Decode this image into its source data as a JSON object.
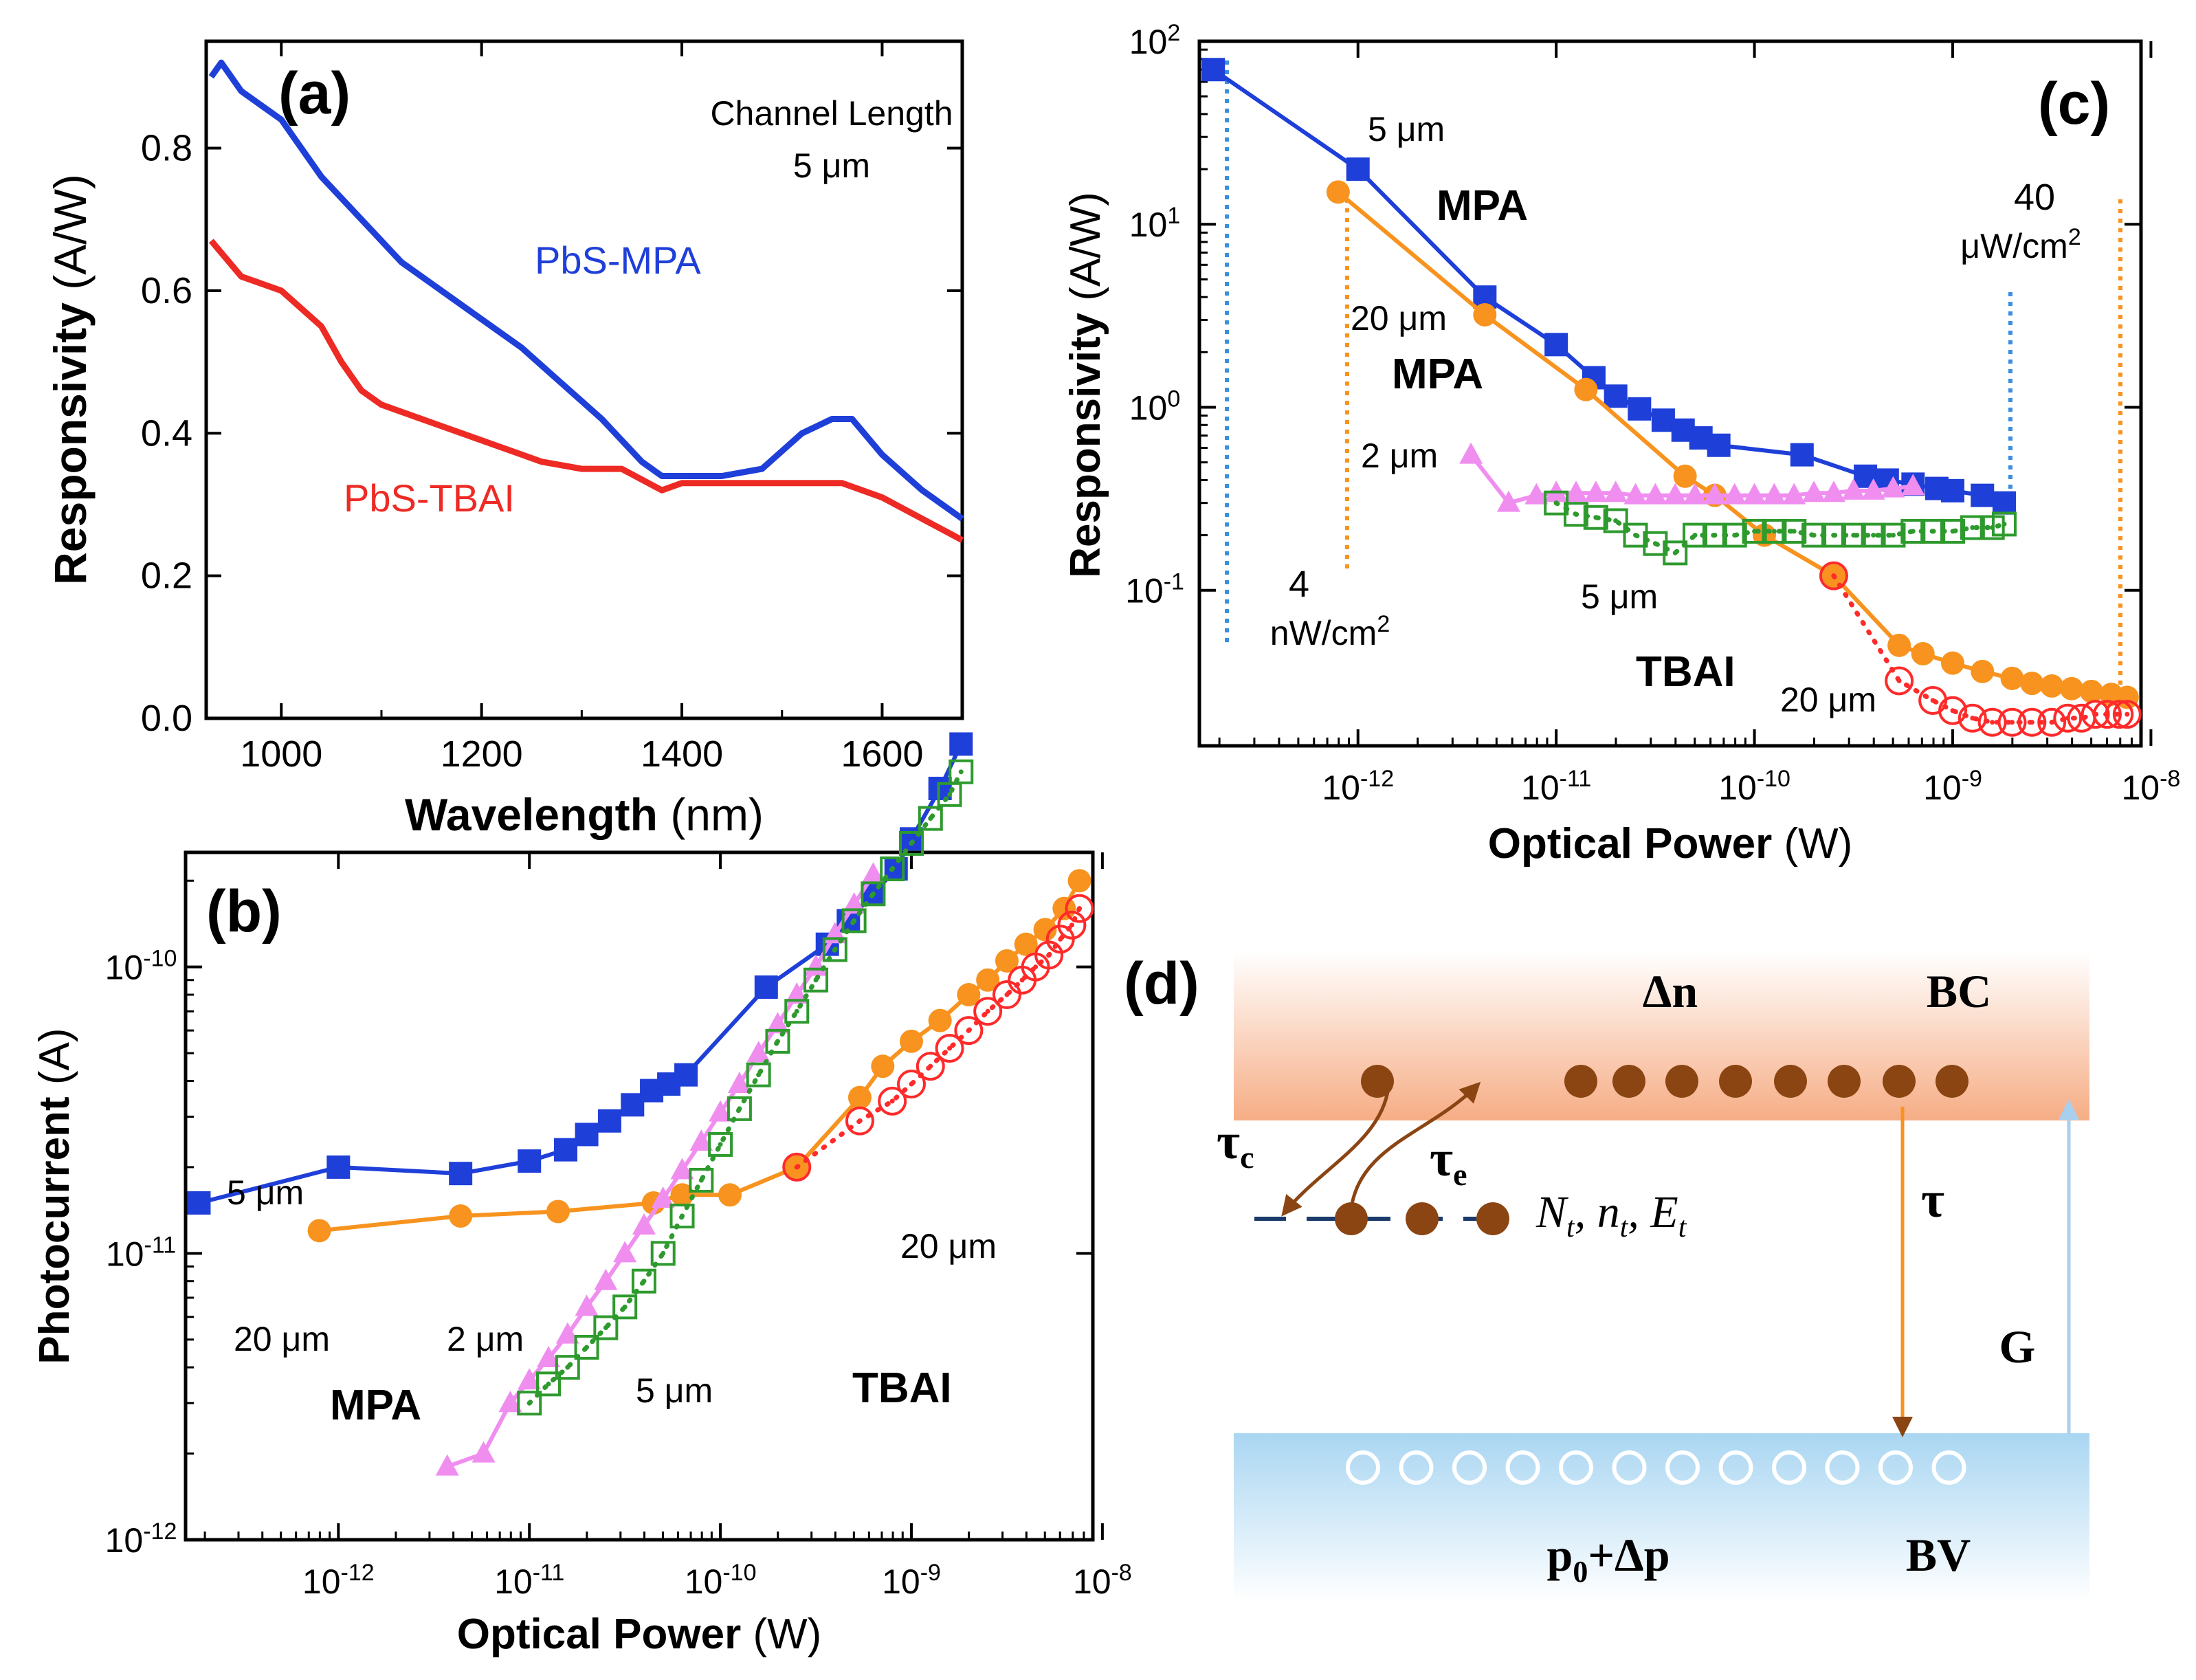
{
  "colors": {
    "mpa": "#1f3fd9",
    "tbai": "#ee2a24",
    "orange": "#f7931e",
    "pink": "#f08ef0",
    "green": "#2e9a2e",
    "redOpen": "#ff2a2a",
    "dotBlue": "#3b8fe0",
    "dotOrange": "#f7931e",
    "brown": "#8b4513",
    "bcBand": "#f6ad85",
    "bvBand": "#a9d6f2",
    "arrowG": "#a8d0ee"
  },
  "chart_data": [
    {
      "panel": "(a)",
      "type": "line",
      "xlabel_bold": "Wavelength",
      "xlabel_unit": "(nm)",
      "ylabel_bold": "Responsivity",
      "ylabel_unit": "(A/W)",
      "xlim": [
        925,
        1680
      ],
      "ylim": [
        0,
        0.95
      ],
      "xticks": [
        1000,
        1200,
        1400,
        1600
      ],
      "yticks": [
        0.0,
        0.2,
        0.4,
        0.6,
        0.8
      ],
      "ytick_labels": [
        "0.0",
        "0.2",
        "0.4",
        "0.6",
        "0.8"
      ],
      "annotation_line1": "Channel Length",
      "annotation_line2": "5 μm",
      "series": [
        {
          "name": "PbS-MPA",
          "color_key": "mpa",
          "x": [
            930,
            940,
            960,
            1000,
            1040,
            1080,
            1120,
            1160,
            1200,
            1240,
            1280,
            1320,
            1360,
            1380,
            1400,
            1440,
            1480,
            1520,
            1550,
            1570,
            1600,
            1640,
            1680
          ],
          "y": [
            0.9,
            0.92,
            0.88,
            0.84,
            0.76,
            0.7,
            0.64,
            0.6,
            0.56,
            0.52,
            0.47,
            0.42,
            0.36,
            0.34,
            0.34,
            0.34,
            0.35,
            0.4,
            0.42,
            0.42,
            0.37,
            0.32,
            0.28
          ]
        },
        {
          "name": "PbS-TBAI",
          "color_key": "tbai",
          "x": [
            930,
            960,
            1000,
            1040,
            1060,
            1080,
            1100,
            1140,
            1200,
            1260,
            1300,
            1340,
            1380,
            1400,
            1440,
            1480,
            1520,
            1560,
            1600,
            1640,
            1680
          ],
          "y": [
            0.67,
            0.62,
            0.6,
            0.55,
            0.5,
            0.46,
            0.44,
            0.42,
            0.39,
            0.36,
            0.35,
            0.35,
            0.32,
            0.33,
            0.33,
            0.33,
            0.33,
            0.33,
            0.31,
            0.28,
            0.25
          ]
        }
      ],
      "label_mpa": "PbS-MPA",
      "label_tbai": "PbS-TBAI"
    },
    {
      "panel": "(b)",
      "type": "scatter",
      "xscale": "log",
      "yscale": "log",
      "xlabel_bold": "Optical Power",
      "xlabel_unit": "(W)",
      "ylabel_bold": "Photocurrent",
      "ylabel_unit": "(A)",
      "xlim_exp": [
        -12.8,
        -8.05
      ],
      "ylim_exp": [
        -12,
        -9.6
      ],
      "xtick_exps": [
        -12,
        -11,
        -10,
        -9,
        -8
      ],
      "ytick_exps": [
        -12,
        -11,
        -10
      ],
      "labels": {
        "mpa_5um": "5 μm",
        "mpa_20um": "20 μm",
        "tbai_2um": "2 μm",
        "tbai_5um": "5 μm",
        "tbai_20um": "20 μm",
        "mpa": "MPA",
        "tbai": "TBAI"
      },
      "series": [
        {
          "name": "MPA 5 μm",
          "marker": "square-filled",
          "color_key": "mpa",
          "line": "solid",
          "x_exp": [
            -12.73,
            -12.0,
            -11.36,
            -11.0,
            -10.81,
            -10.7,
            -10.58,
            -10.46,
            -10.36,
            -10.27,
            -10.18,
            -9.76,
            -9.44,
            -9.33,
            -9.2,
            -9.08,
            -9.0,
            -8.85,
            -8.74
          ],
          "y": [
            1.5e-11,
            2e-11,
            1.9e-11,
            2.1e-11,
            2.3e-11,
            2.6e-11,
            2.9e-11,
            3.3e-11,
            3.7e-11,
            3.9e-11,
            4.2e-11,
            8.5e-11,
            1.2e-10,
            1.45e-10,
            1.8e-10,
            2.2e-10,
            2.8e-10,
            4.2e-10,
            6e-10
          ]
        },
        {
          "name": "MPA 20 μm",
          "marker": "circle-filled",
          "color_key": "orange",
          "line": "solid",
          "x_exp": [
            -12.1,
            -11.36,
            -10.85,
            -10.35,
            -10.2,
            -9.95,
            -9.6,
            -9.27,
            -9.15,
            -9.0,
            -8.85,
            -8.7,
            -8.6,
            -8.5,
            -8.4,
            -8.3,
            -8.2,
            -8.12
          ],
          "y": [
            1.2e-11,
            1.35e-11,
            1.4e-11,
            1.5e-11,
            1.6e-11,
            1.6e-11,
            2e-11,
            3.5e-11,
            4.5e-11,
            5.5e-11,
            6.5e-11,
            8e-11,
            9e-11,
            1.05e-10,
            1.2e-10,
            1.35e-10,
            1.6e-10,
            2e-10
          ]
        },
        {
          "name": "TBAI 2 μm",
          "marker": "triangle-filled",
          "color_key": "pink",
          "line": "solid",
          "x_exp": [
            -11.43,
            -11.24,
            -11.1,
            -11.0,
            -10.9,
            -10.8,
            -10.7,
            -10.6,
            -10.5,
            -10.4,
            -10.3,
            -10.2,
            -10.1,
            -10.0,
            -9.9,
            -9.8,
            -9.7,
            -9.6,
            -9.5,
            -9.4,
            -9.3,
            -9.2
          ],
          "y": [
            1.8e-12,
            2e-12,
            3e-12,
            3.6e-12,
            4.3e-12,
            5.2e-12,
            6.5e-12,
            8e-12,
            1e-11,
            1.25e-11,
            1.55e-11,
            1.95e-11,
            2.45e-11,
            3.1e-11,
            3.9e-11,
            5e-11,
            6.3e-11,
            8e-11,
            1e-10,
            1.3e-10,
            1.65e-10,
            2.1e-10
          ]
        },
        {
          "name": "TBAI 5 μm",
          "marker": "square-open-dot",
          "color_key": "green",
          "line": "dotted",
          "x_exp": [
            -11.0,
            -10.9,
            -10.8,
            -10.7,
            -10.6,
            -10.5,
            -10.4,
            -10.3,
            -10.2,
            -10.1,
            -10.0,
            -9.9,
            -9.8,
            -9.7,
            -9.6,
            -9.5,
            -9.4,
            -9.3,
            -9.2,
            -9.1,
            -9.0,
            -8.9,
            -8.8,
            -8.74
          ],
          "y": [
            3e-12,
            3.5e-12,
            4e-12,
            4.7e-12,
            5.5e-12,
            6.5e-12,
            8e-12,
            1e-11,
            1.35e-11,
            1.8e-11,
            2.4e-11,
            3.2e-11,
            4.2e-11,
            5.5e-11,
            7e-11,
            9e-11,
            1.15e-10,
            1.45e-10,
            1.8e-10,
            2.2e-10,
            2.7e-10,
            3.3e-10,
            4e-10,
            4.8e-10
          ]
        },
        {
          "name": "TBAI 20 μm",
          "marker": "circle-open-dot",
          "color_key": "redOpen",
          "line": "dotted",
          "x_exp": [
            -9.6,
            -9.27,
            -9.1,
            -9.0,
            -8.9,
            -8.8,
            -8.7,
            -8.6,
            -8.5,
            -8.42,
            -8.35,
            -8.28,
            -8.22,
            -8.16,
            -8.12
          ],
          "y": [
            2e-11,
            2.9e-11,
            3.4e-11,
            3.9e-11,
            4.5e-11,
            5.2e-11,
            6e-11,
            7e-11,
            8e-11,
            9e-11,
            1e-10,
            1.1e-10,
            1.25e-10,
            1.4e-10,
            1.6e-10
          ]
        }
      ]
    },
    {
      "panel": "(c)",
      "type": "scatter",
      "xscale": "log",
      "yscale": "log",
      "xlabel_bold": "Optical Power",
      "xlabel_unit": "(W)",
      "ylabel_bold": "Responsivity",
      "ylabel_unit": "(A/W)",
      "xlim_exp": [
        -12.8,
        -8.05
      ],
      "ylim_exp": [
        -1.85,
        2.0
      ],
      "xtick_exps": [
        -12,
        -11,
        -10,
        -9,
        -8
      ],
      "ytick_exps": [
        -1,
        0,
        1,
        2
      ],
      "labels": {
        "mpa_5um": "5 μm",
        "mpa_20um": "20 μm",
        "mpa_top": "MPA",
        "mpa_mid": "MPA",
        "tbai_2um": "2 μm",
        "tbai_5um": "5 μm",
        "tbai_20um": "20 μm",
        "tbai": "TBAI",
        "low_power_value": "4",
        "low_power_unit": "nW/cm2",
        "high_power_value": "40",
        "high_power_unit": "μW/cm2"
      },
      "series": [
        {
          "name": "MPA 5 μm",
          "marker": "square-filled",
          "color_key": "mpa",
          "line": "solid",
          "x_exp": [
            -12.73,
            -12.0,
            -11.36,
            -11.0,
            -10.81,
            -10.7,
            -10.58,
            -10.46,
            -10.36,
            -10.27,
            -10.18,
            -9.76,
            -9.44,
            -9.33,
            -9.2,
            -9.08,
            -9.0,
            -8.85,
            -8.74
          ],
          "y": [
            70,
            20,
            4.0,
            2.2,
            1.45,
            1.15,
            0.98,
            0.85,
            0.75,
            0.68,
            0.62,
            0.55,
            0.42,
            0.4,
            0.38,
            0.36,
            0.35,
            0.33,
            0.3
          ]
        },
        {
          "name": "MPA 20 μm",
          "marker": "circle-filled",
          "color_key": "orange",
          "line": "solid",
          "x_exp": [
            -12.1,
            -11.36,
            -10.85,
            -10.35,
            -10.2,
            -9.95,
            -9.6,
            -9.27,
            -9.15,
            -9.0,
            -8.85,
            -8.7,
            -8.6,
            -8.5,
            -8.4,
            -8.3,
            -8.2,
            -8.12
          ],
          "y": [
            15,
            3.2,
            1.25,
            0.42,
            0.33,
            0.2,
            0.12,
            0.05,
            0.045,
            0.04,
            0.036,
            0.033,
            0.031,
            0.03,
            0.029,
            0.028,
            0.027,
            0.026
          ]
        },
        {
          "name": "TBAI 2 μm",
          "marker": "triangle-filled",
          "color_key": "pink",
          "line": "solid",
          "x_exp": [
            -11.43,
            -11.24,
            -11.1,
            -11.0,
            -10.9,
            -10.8,
            -10.7,
            -10.6,
            -10.5,
            -10.4,
            -10.3,
            -10.2,
            -10.1,
            -10.0,
            -9.9,
            -9.8,
            -9.7,
            -9.6,
            -9.5,
            -9.4,
            -9.3,
            -9.2
          ],
          "y": [
            0.55,
            0.3,
            0.33,
            0.34,
            0.34,
            0.34,
            0.34,
            0.33,
            0.33,
            0.33,
            0.33,
            0.33,
            0.33,
            0.33,
            0.33,
            0.33,
            0.34,
            0.34,
            0.35,
            0.35,
            0.36,
            0.37
          ]
        },
        {
          "name": "TBAI 5 μm",
          "marker": "square-open-dot",
          "color_key": "green",
          "line": "dotted",
          "x_exp": [
            -11.0,
            -10.9,
            -10.8,
            -10.7,
            -10.6,
            -10.5,
            -10.4,
            -10.3,
            -10.2,
            -10.1,
            -10.0,
            -9.9,
            -9.8,
            -9.7,
            -9.6,
            -9.5,
            -9.4,
            -9.3,
            -9.2,
            -9.1,
            -9.0,
            -8.9,
            -8.8,
            -8.74
          ],
          "y": [
            0.3,
            0.26,
            0.25,
            0.24,
            0.2,
            0.18,
            0.16,
            0.2,
            0.2,
            0.2,
            0.21,
            0.21,
            0.21,
            0.2,
            0.2,
            0.2,
            0.2,
            0.2,
            0.21,
            0.21,
            0.21,
            0.22,
            0.22,
            0.23
          ]
        },
        {
          "name": "TBAI 20 μm",
          "marker": "circle-open-dot",
          "color_key": "redOpen",
          "line": "dotted",
          "x_exp": [
            -9.6,
            -9.27,
            -9.1,
            -9.0,
            -8.9,
            -8.8,
            -8.7,
            -8.6,
            -8.5,
            -8.42,
            -8.35,
            -8.28,
            -8.22,
            -8.16,
            -8.12
          ],
          "y": [
            0.12,
            0.032,
            0.025,
            0.022,
            0.02,
            0.019,
            0.019,
            0.019,
            0.019,
            0.02,
            0.02,
            0.021,
            0.021,
            0.021,
            0.021
          ]
        }
      ]
    }
  ],
  "panel_d": {
    "label": "(d)",
    "delta_n": "Δn",
    "bc": "BC",
    "bv": "BV",
    "tau_c_main": "τ",
    "tau_c_sub": "c",
    "tau_e_main": "τ",
    "tau_e_sub": "e",
    "tau": "τ",
    "trap_params": "N",
    "trap_sub_1": "t",
    "trap_sep_1": ", n",
    "trap_sub_2": "t",
    "trap_sep_2": ", E",
    "trap_sub_3": "t",
    "generation": "G",
    "holes_main": "p",
    "holes_sub": "0",
    "holes_rest": "+Δp"
  }
}
